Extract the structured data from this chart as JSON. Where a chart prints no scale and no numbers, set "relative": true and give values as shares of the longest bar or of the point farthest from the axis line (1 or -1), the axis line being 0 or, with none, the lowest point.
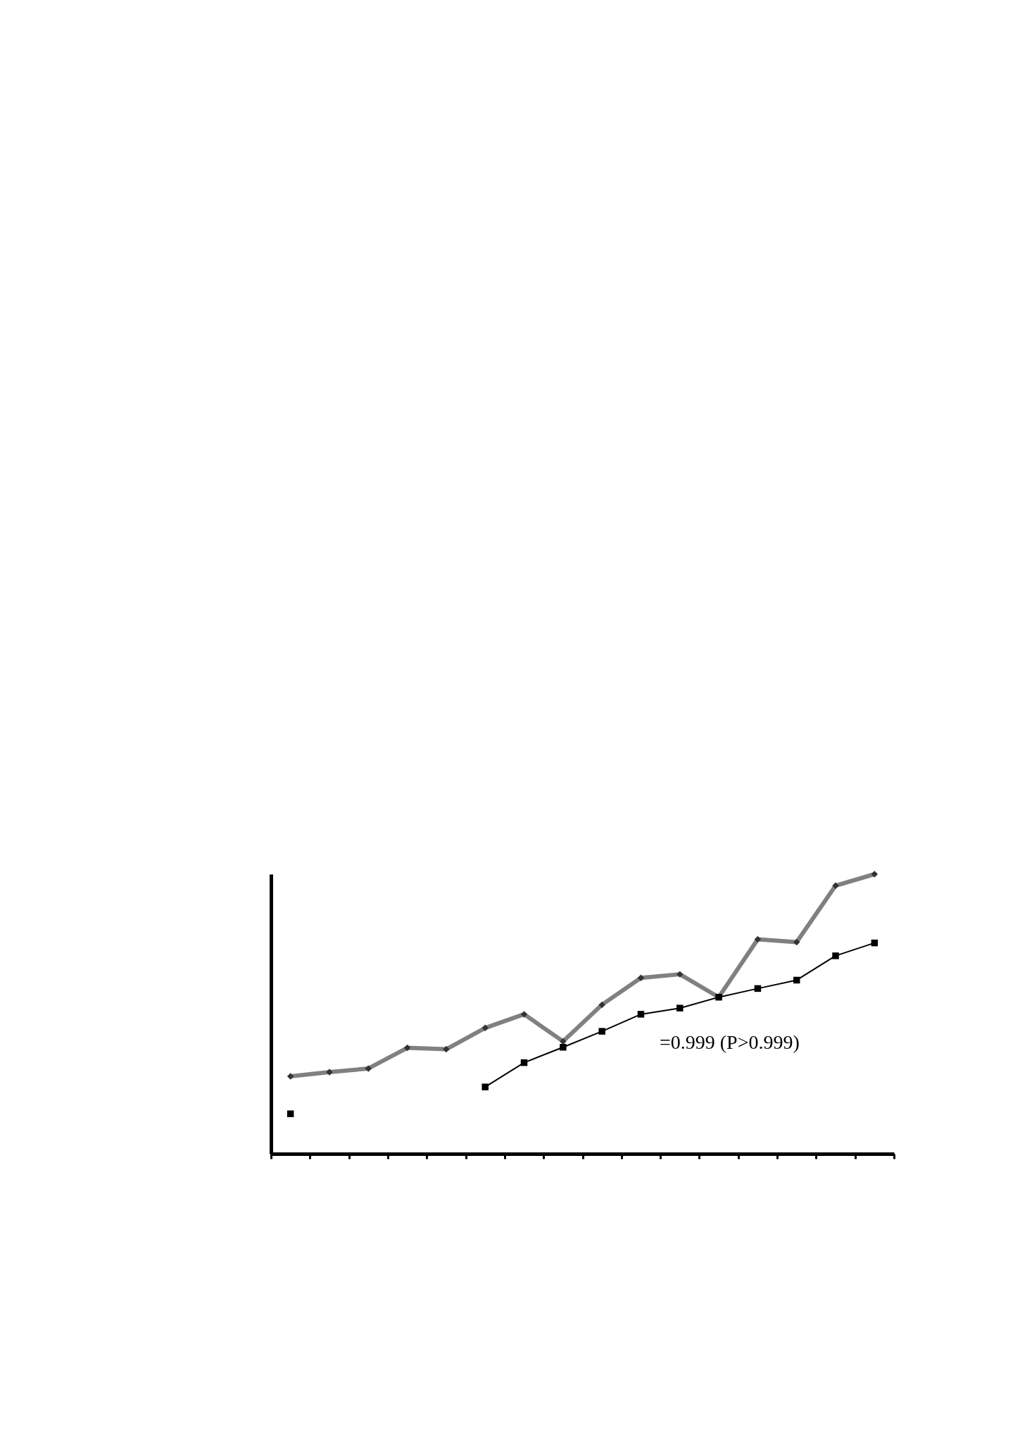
{
  "chart_data": {
    "type": "line",
    "relative": true,
    "categories": [
      null,
      null,
      null,
      null,
      null,
      null,
      null,
      null,
      null,
      null,
      null,
      null,
      null,
      null,
      null,
      null
    ],
    "series": [
      {
        "color": "#808080",
        "marker": "diamond",
        "values": [
          0.277,
          0.292,
          0.305,
          0.379,
          0.374,
          0.45,
          0.499,
          0.402,
          0.533,
          0.629,
          0.642,
          0.56,
          0.767,
          0.757,
          0.959,
          1
        ]
      },
      {
        "color": "#000000",
        "marker": "square",
        "values": [
          0.143,
          null,
          null,
          null,
          null,
          0.239,
          0.326,
          0.381,
          0.438,
          0.499,
          0.521,
          0.56,
          0.591,
          0.621,
          0.708,
          0.754
        ]
      }
    ],
    "annotations": [
      "=0.999 (P>0.999)"
    ]
  }
}
